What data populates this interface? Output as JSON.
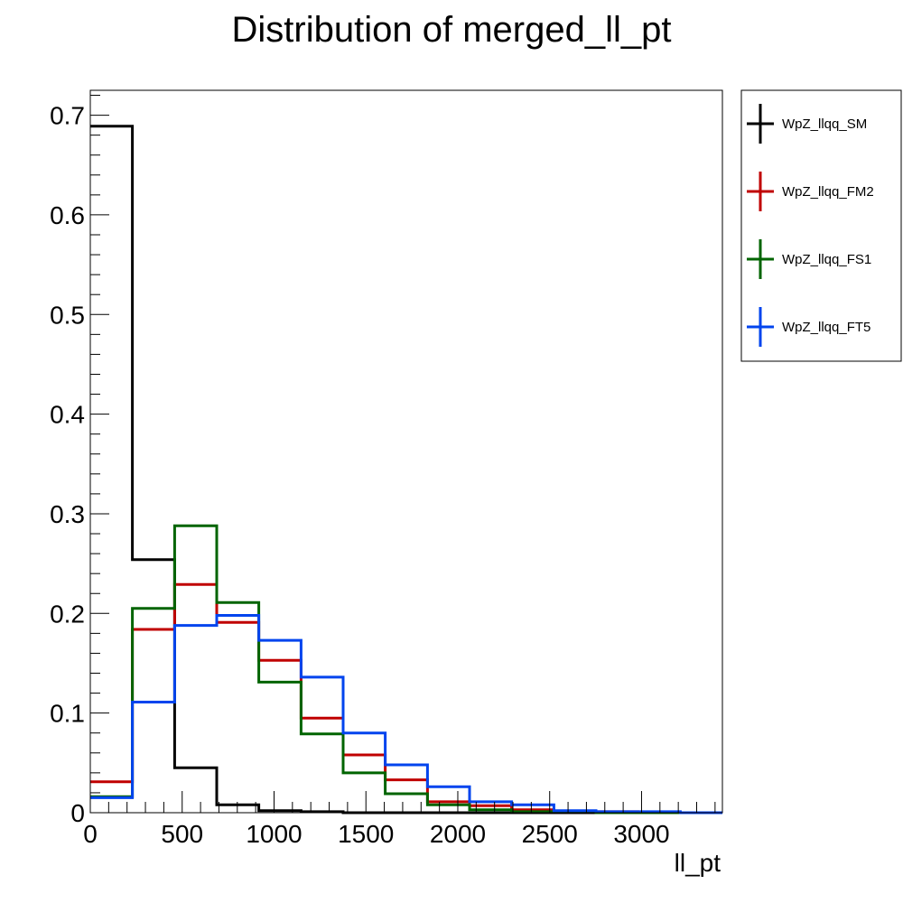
{
  "chart_data": {
    "type": "histogram",
    "title": "Distribution of merged_ll_pt",
    "xlabel": "ll_pt",
    "ylabel": "",
    "xlim": [
      0,
      3440
    ],
    "ylim": [
      0,
      0.725
    ],
    "x_ticks": [
      {
        "value": 0,
        "label": "0"
      },
      {
        "value": 500,
        "label": "500"
      },
      {
        "value": 1000,
        "label": "1000"
      },
      {
        "value": 1500,
        "label": "1500"
      },
      {
        "value": 2000,
        "label": "2000"
      },
      {
        "value": 2500,
        "label": "2500"
      },
      {
        "value": 3000,
        "label": "3000"
      }
    ],
    "y_ticks": [
      {
        "value": 0,
        "label": "0"
      },
      {
        "value": 0.1,
        "label": "0.1"
      },
      {
        "value": 0.2,
        "label": "0.2"
      },
      {
        "value": 0.3,
        "label": "0.3"
      },
      {
        "value": 0.4,
        "label": "0.4"
      },
      {
        "value": 0.5,
        "label": "0.5"
      },
      {
        "value": 0.6,
        "label": "0.6"
      },
      {
        "value": 0.7,
        "label": "0.7"
      }
    ],
    "bin_edges": [
      0,
      229,
      459,
      688,
      917,
      1147,
      1376,
      1605,
      1835,
      2064,
      2293,
      2523,
      2752,
      2981,
      3211,
      3440
    ],
    "legend_position": "right",
    "series": [
      {
        "name": "WpZ_llqq_SM",
        "color": "#000000",
        "values": [
          0.689,
          0.254,
          0.045,
          0.008,
          0.002,
          0.001,
          0.0,
          0.0,
          0.0,
          0.0,
          0.0,
          0.0,
          0.0,
          0.0,
          0.0
        ]
      },
      {
        "name": "WpZ_llqq_FM2",
        "color": "#c00000",
        "values": [
          0.031,
          0.184,
          0.229,
          0.191,
          0.153,
          0.095,
          0.058,
          0.033,
          0.011,
          0.007,
          0.003,
          0.001,
          0.001,
          0.0,
          0.0
        ]
      },
      {
        "name": "WpZ_llqq_FS1",
        "color": "#006400",
        "values": [
          0.016,
          0.205,
          0.288,
          0.211,
          0.131,
          0.079,
          0.04,
          0.019,
          0.008,
          0.003,
          0.001,
          0.001,
          0.0,
          0.0,
          0.0
        ]
      },
      {
        "name": "WpZ_llqq_FT5",
        "color": "#0044ee",
        "values": [
          0.015,
          0.111,
          0.188,
          0.198,
          0.173,
          0.136,
          0.08,
          0.048,
          0.026,
          0.011,
          0.008,
          0.002,
          0.001,
          0.001,
          0.0
        ]
      }
    ]
  }
}
